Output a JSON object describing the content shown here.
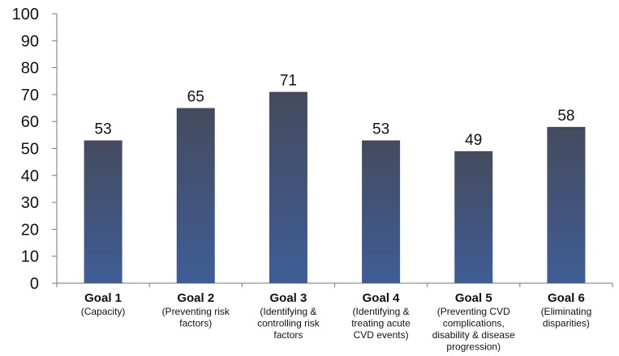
{
  "chart_data": {
    "type": "bar",
    "categories": [
      {
        "title": "Goal 1",
        "description": [
          "(Capacity)"
        ]
      },
      {
        "title": "Goal 2",
        "description": [
          "(Preventing risk",
          "factors)"
        ]
      },
      {
        "title": "Goal 3",
        "description": [
          "(Identifying &",
          "controlling risk",
          "factors"
        ]
      },
      {
        "title": "Goal 4",
        "description": [
          "(Identifying &",
          "treating acute",
          "CVD events)"
        ]
      },
      {
        "title": "Goal 5",
        "description": [
          "(Preventing CVD",
          "complications,",
          "disability & disease",
          "progression)"
        ]
      },
      {
        "title": "Goal 6",
        "description": [
          "(Eliminating",
          "disparities)"
        ]
      }
    ],
    "values": [
      53,
      65,
      71,
      53,
      49,
      58
    ],
    "data_labels": [
      "53",
      "65",
      "71",
      "53",
      "49",
      "58"
    ],
    "ylim": [
      0,
      100
    ],
    "yticks": [
      0,
      10,
      20,
      30,
      40,
      50,
      60,
      70,
      80,
      90,
      100
    ],
    "title": "",
    "xlabel": "",
    "ylabel": "",
    "grid": false,
    "legend": "none",
    "colors": {
      "bar_top": "#454b5e",
      "bar_bottom": "#3f5d96",
      "axis": "#777777",
      "text": "#111111"
    }
  }
}
